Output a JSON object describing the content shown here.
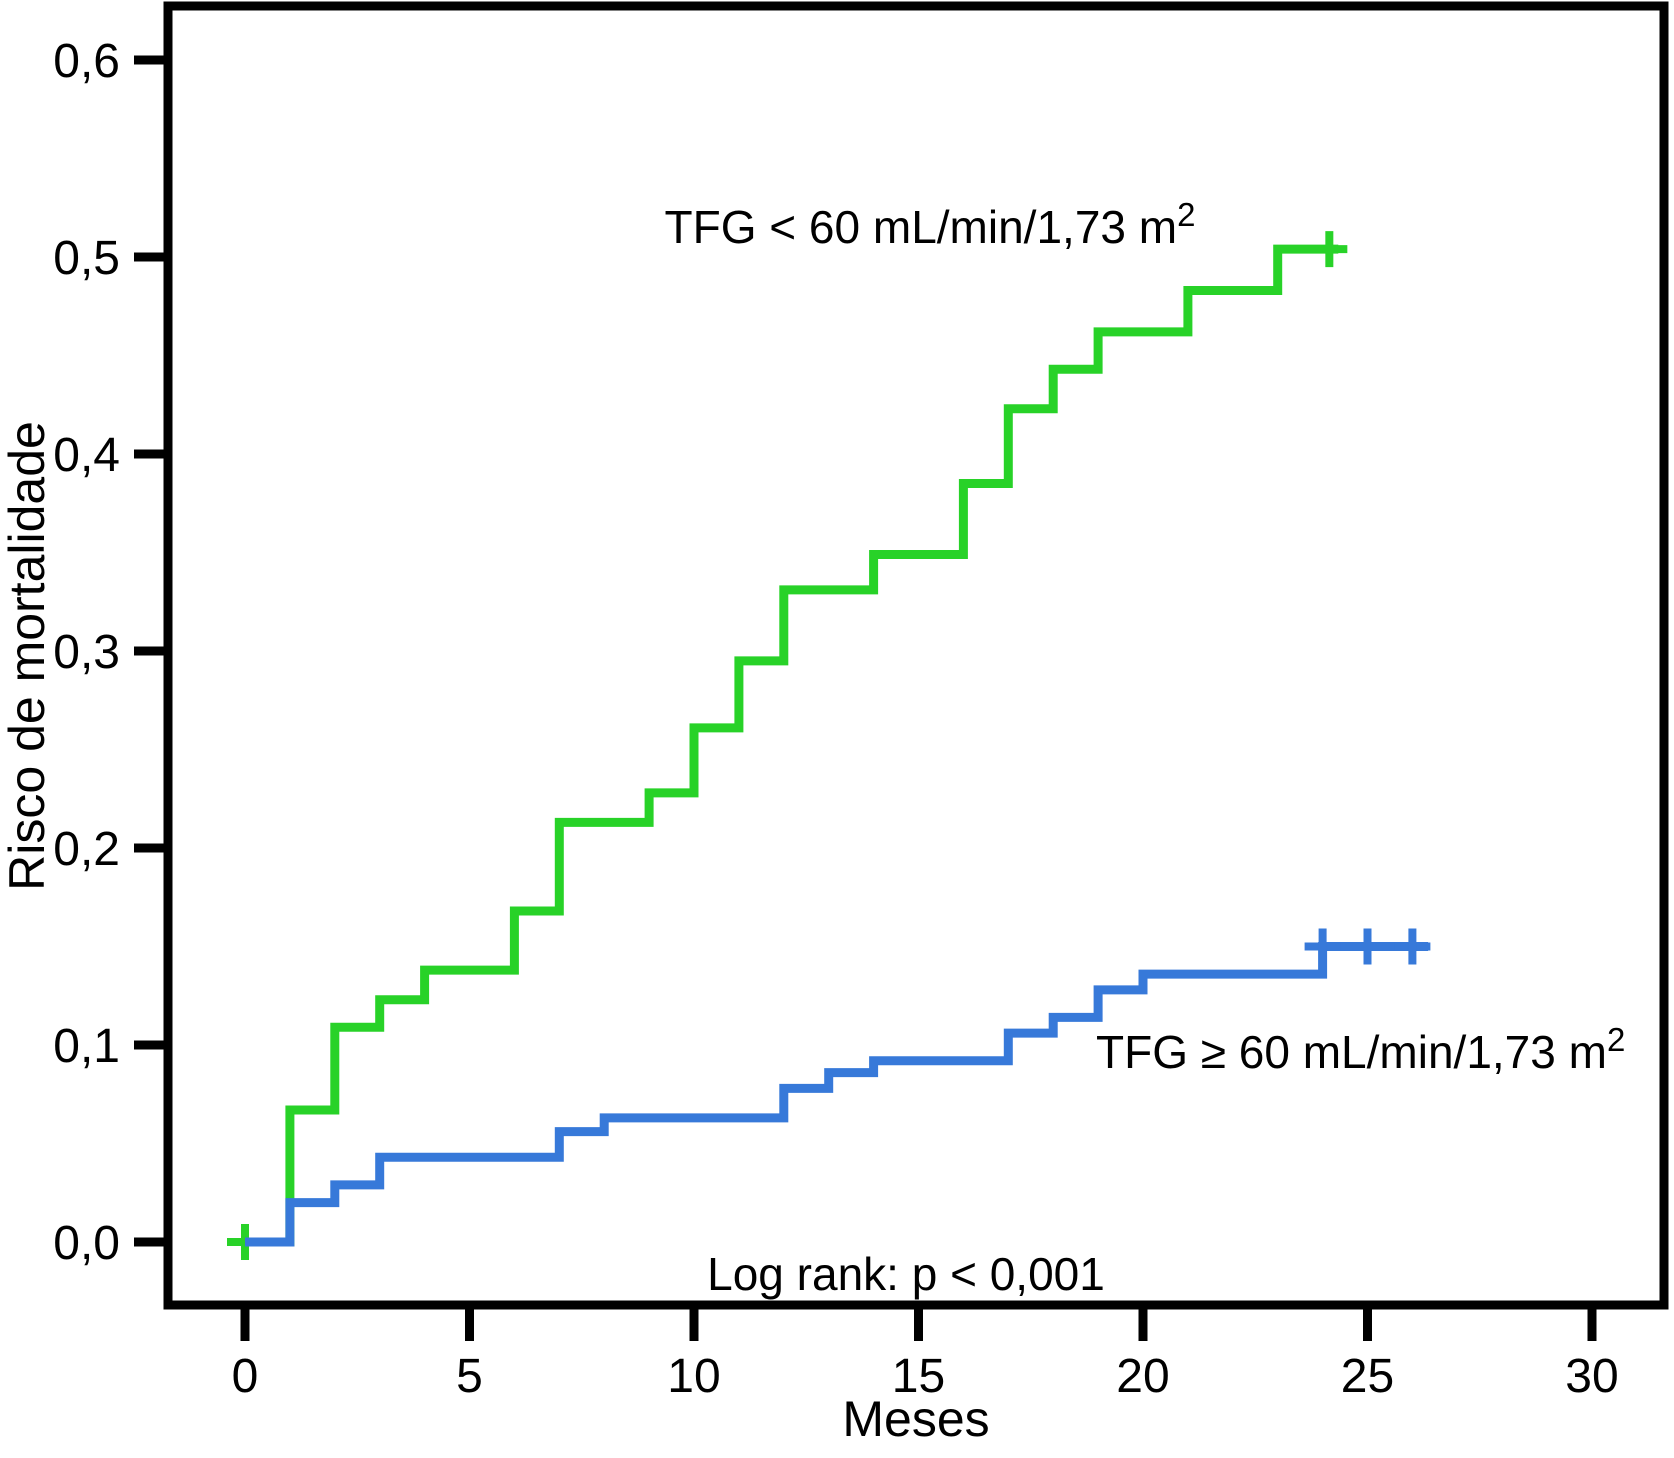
{
  "figure": {
    "background": "#ffffff",
    "axis_color": "#000000"
  },
  "chart_data": {
    "type": "line",
    "variant": "kaplan_meier_cumulative_risk_step_curves",
    "title": "",
    "xlabel": "Meses",
    "ylabel": "Risco de mortalidade",
    "xlim": [
      -1.7,
      31.6
    ],
    "ylim": [
      -0.032,
      0.627
    ],
    "xticks": [
      0,
      5,
      10,
      15,
      20,
      25,
      30
    ],
    "x_tick_labels": [
      "0",
      "5",
      "10",
      "15",
      "20",
      "25",
      "30"
    ],
    "yticks": [
      0.0,
      0.1,
      0.2,
      0.3,
      0.4,
      0.5,
      0.6
    ],
    "y_tick_labels": [
      "0,0",
      "0,1",
      "0,2",
      "0,3",
      "0,4",
      "0,5",
      "0,6"
    ],
    "grid": false,
    "legend_position": "inline-annotations",
    "annotations": {
      "log_rank": "Log rank: p < 0,001"
    },
    "series": [
      {
        "name": "TFG < 60 mL/min/1,73 m2",
        "label_text": "TFG < 60 mL/min/1,73 m",
        "label_sup": "2",
        "color": "#28D228",
        "steps": [
          [
            0,
            0.0
          ],
          [
            1,
            0.067
          ],
          [
            2,
            0.109
          ],
          [
            3,
            0.123
          ],
          [
            4,
            0.138
          ],
          [
            6,
            0.168
          ],
          [
            7,
            0.213
          ],
          [
            9,
            0.228
          ],
          [
            10,
            0.261
          ],
          [
            11,
            0.295
          ],
          [
            12,
            0.331
          ],
          [
            14,
            0.349
          ],
          [
            16,
            0.385
          ],
          [
            17,
            0.423
          ],
          [
            18,
            0.443
          ],
          [
            19,
            0.462
          ],
          [
            21,
            0.483
          ],
          [
            23,
            0.504
          ]
        ],
        "end_time": 24.35,
        "censor_marks": [
          [
            0,
            0.0
          ],
          [
            24.15,
            0.504
          ]
        ]
      },
      {
        "name": "TFG >= 60 mL/min/1,73 m2",
        "label_text": "TFG ≥ 60 mL/min/1,73 m",
        "label_sup": "2",
        "color": "#3779D9",
        "steps": [
          [
            0,
            0.0
          ],
          [
            1,
            0.02
          ],
          [
            2,
            0.029
          ],
          [
            3,
            0.043
          ],
          [
            7,
            0.056
          ],
          [
            8,
            0.063
          ],
          [
            12,
            0.078
          ],
          [
            13,
            0.086
          ],
          [
            14,
            0.092
          ],
          [
            17,
            0.106
          ],
          [
            18,
            0.114
          ],
          [
            19,
            0.128
          ],
          [
            20,
            0.136
          ],
          [
            24,
            0.15
          ]
        ],
        "end_time": 26.35,
        "censor_marks": [
          [
            24.0,
            0.15
          ],
          [
            25.0,
            0.15
          ],
          [
            26.0,
            0.15
          ]
        ]
      }
    ]
  }
}
